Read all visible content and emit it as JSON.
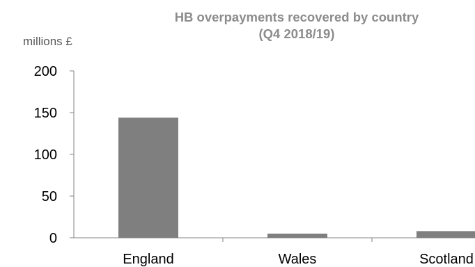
{
  "chart_data": {
    "type": "bar",
    "title": [
      "HB overpayments recovered by country",
      "(Q4  2018/19)"
    ],
    "ylabel": "millions £",
    "categories": [
      "England",
      "Wales",
      "Scotland"
    ],
    "values": [
      144,
      5,
      8
    ],
    "ylim": [
      0,
      200
    ],
    "yticks": [
      "0",
      "50",
      "100",
      "150",
      "200"
    ],
    "bar_color": "#7f7f7f",
    "grid": false,
    "legend": "none"
  }
}
